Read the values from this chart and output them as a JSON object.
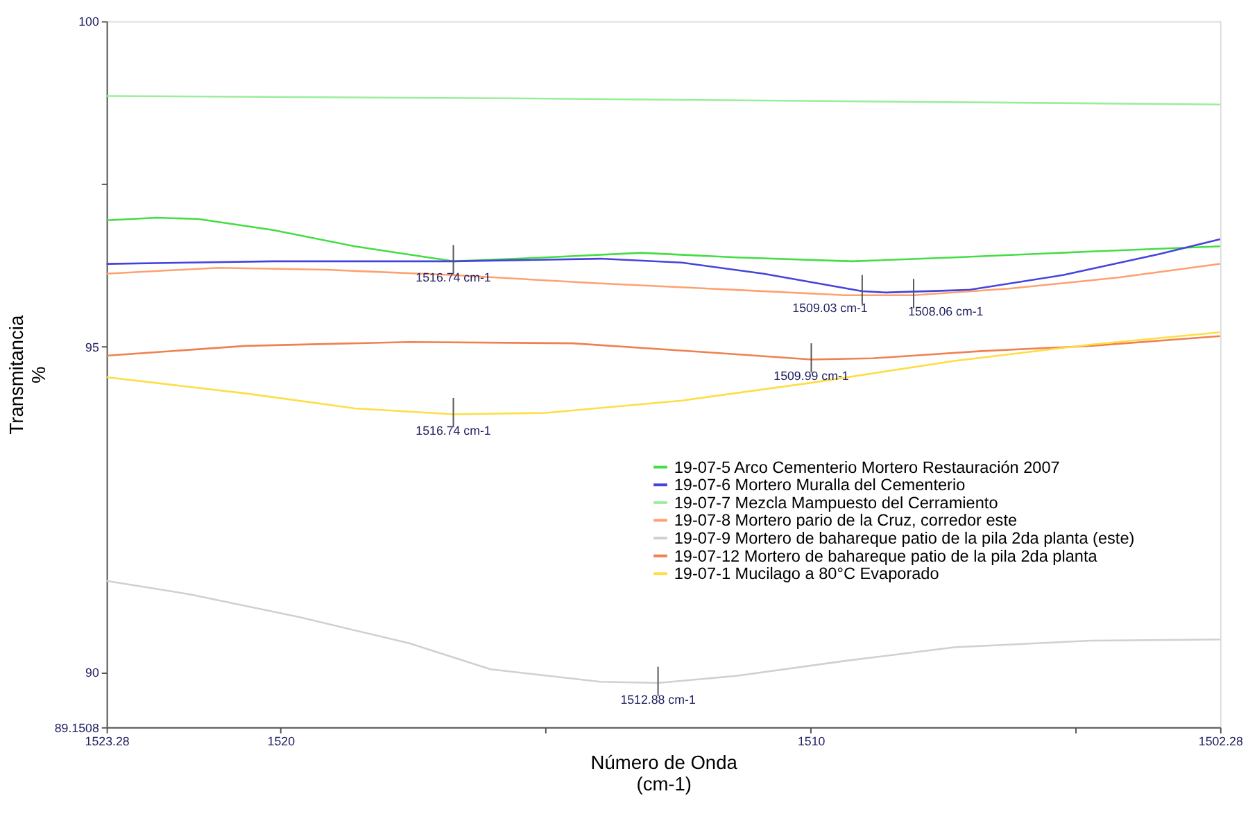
{
  "chart_data": {
    "type": "line",
    "xlabel": "Número de Onda\n(cm-1)",
    "ylabel": "Transmitancia\n%",
    "xlim": [
      1523.28,
      1502.28
    ],
    "xticks": [
      1523.28,
      1520,
      {
        "value": 1515,
        "label": null
      },
      1510,
      {
        "value": 1505,
        "label": null
      },
      1502.28
    ],
    "ylim": [
      89.1508,
      100
    ],
    "yticks": [
      89.1508,
      90,
      95,
      {
        "value": 97.5,
        "label": null
      },
      100
    ],
    "grid": false,
    "legend": "bottom right",
    "marker": "none",
    "line_style": "solid",
    "series": [
      {
        "name": "19-07-5 Arco Cementerio Mortero Restauración 2007",
        "color": "#44dd44",
        "x": [
          1523.28,
          1522.33,
          1521.56,
          1520.14,
          1518.6,
          1516.74,
          1515.0,
          1513.2,
          1511.4,
          1509.22,
          1507.29,
          1504.72,
          1502.28
        ],
        "values": [
          96.94,
          96.98,
          96.96,
          96.79,
          96.54,
          96.31,
          96.37,
          96.44,
          96.37,
          96.31,
          96.37,
          96.46,
          96.54
        ]
      },
      {
        "name": "19-07-6 Mortero Muralla del Cementerio",
        "color": "#4444dd",
        "x": [
          1523.28,
          1520.14,
          1516.74,
          1513.97,
          1512.43,
          1510.89,
          1509.03,
          1508.58,
          1507.03,
          1505.23,
          1503.43,
          1502.28
        ],
        "values": [
          96.27,
          96.31,
          96.31,
          96.35,
          96.29,
          96.12,
          95.85,
          95.83,
          95.87,
          96.1,
          96.42,
          96.65
        ]
      },
      {
        "name": "19-07-7 Mezcla Mampuesto del Cerramiento",
        "color": "#99ee99",
        "x": [
          1523.28,
          1515.0,
          1502.28
        ],
        "values": [
          98.85,
          98.81,
          98.72
        ]
      },
      {
        "name": "19-07-8 Mortero pario de la Cruz, corredor este",
        "color": "#ffa070",
        "x": [
          1523.28,
          1521.17,
          1519.12,
          1516.8,
          1513.97,
          1511.4,
          1509.35,
          1508.06,
          1506.26,
          1504.2,
          1502.28
        ],
        "values": [
          96.12,
          96.21,
          96.18,
          96.1,
          95.97,
          95.87,
          95.79,
          95.79,
          95.89,
          96.06,
          96.27
        ]
      },
      {
        "name": "19-07-9 Mortero de bahareque patio de la pila 2da planta (este)",
        "color": "#d0d0d0",
        "x": [
          1523.28,
          1521.69,
          1519.63,
          1517.57,
          1516.04,
          1513.97,
          1512.88,
          1511.4,
          1509.35,
          1507.29,
          1504.72,
          1502.28
        ],
        "values": [
          91.4,
          91.19,
          90.84,
          90.44,
          90.04,
          89.85,
          89.83,
          89.94,
          90.17,
          90.38,
          90.48,
          90.5
        ]
      },
      {
        "name": "19-07-12 Mortero de bahareque patio de la pila 2da planta",
        "color": "#f08050",
        "x": [
          1523.28,
          1520.66,
          1517.57,
          1514.49,
          1511.92,
          1509.99,
          1508.83,
          1506.78,
          1504.72,
          1502.28
        ],
        "values": [
          94.86,
          95.01,
          95.07,
          95.05,
          94.91,
          94.8,
          94.82,
          94.93,
          95.01,
          95.16
        ]
      },
      {
        "name": "19-07-1 Mucilago  a 80°C Evaporado",
        "color": "#ffdd44",
        "x": [
          1523.28,
          1520.66,
          1518.6,
          1516.74,
          1515.0,
          1512.43,
          1510.02,
          1507.29,
          1504.72,
          1502.28
        ],
        "values": [
          94.53,
          94.28,
          94.05,
          93.96,
          93.98,
          94.17,
          94.44,
          94.78,
          95.03,
          95.22
        ]
      }
    ],
    "annotations": [
      {
        "text": "1516.74 cm-1",
        "x": 1516.74,
        "y": 96.31
      },
      {
        "text": "1509.03 cm-1",
        "x": 1509.03,
        "y": 95.85
      },
      {
        "text": "1508.06 cm-1",
        "x": 1508.06,
        "y": 95.79
      },
      {
        "text": "1509.99 cm-1",
        "x": 1509.99,
        "y": 94.8
      },
      {
        "text": "1516.74 cm-1",
        "x": 1516.74,
        "y": 93.96
      },
      {
        "text": "1512.88 cm-1",
        "x": 1512.88,
        "y": 89.83
      }
    ]
  }
}
